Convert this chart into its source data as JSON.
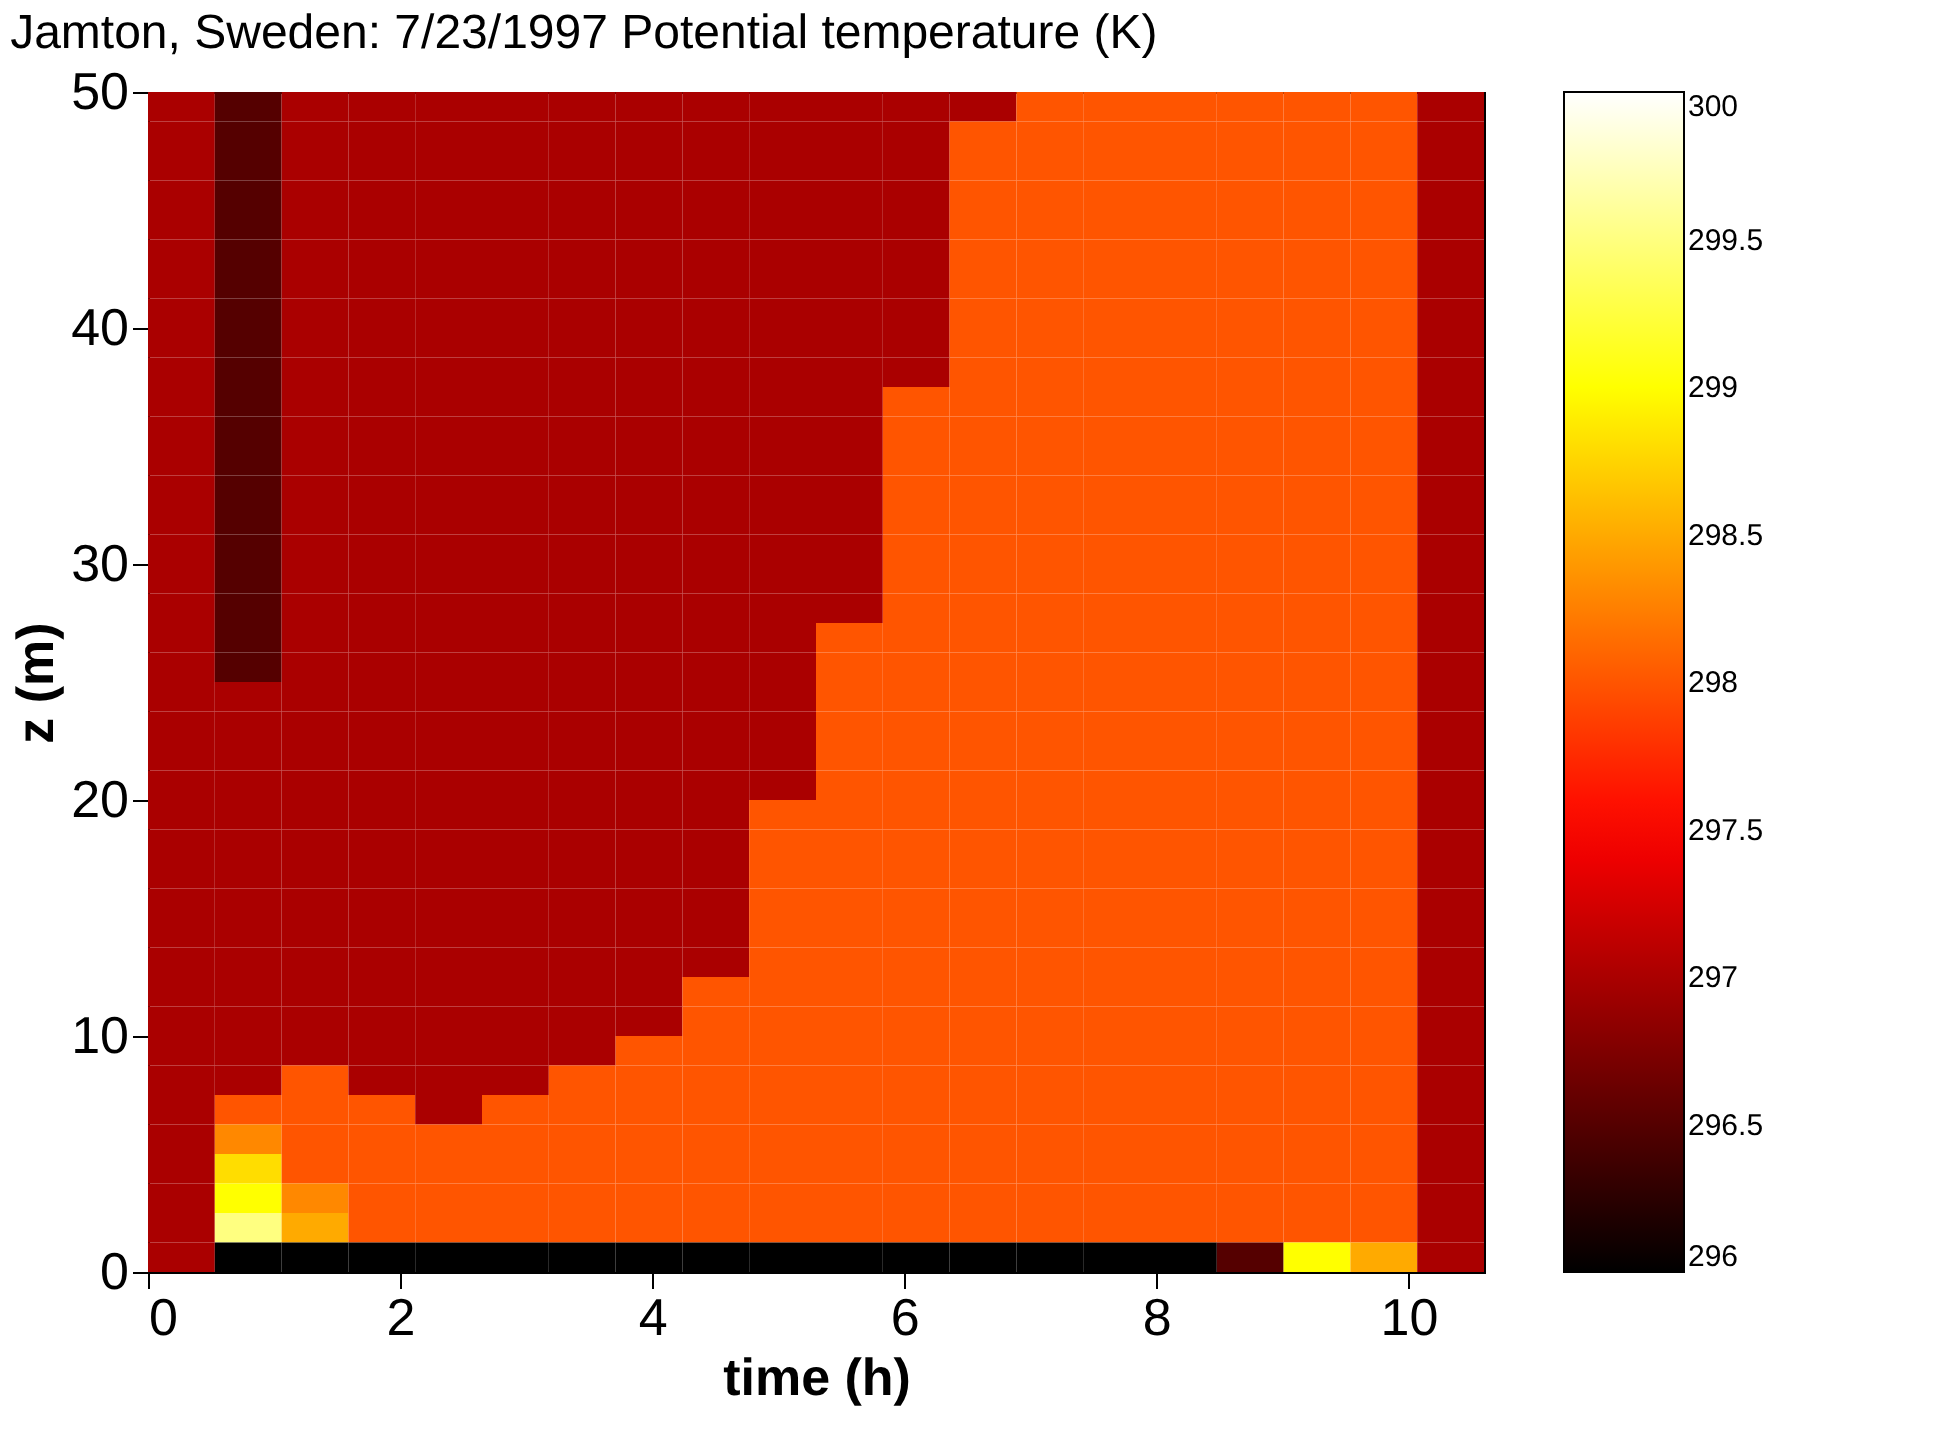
{
  "chart_data": {
    "type": "heatmap",
    "title": "Jamton, Sweden: 7/23/1997 Potential temperature (K)",
    "xlabel": "time (h)",
    "ylabel": "z (m)",
    "cells": [
      [
        297,
        296.5,
        297,
        297,
        297,
        297,
        297,
        297,
        297,
        297,
        297,
        297,
        297,
        298,
        298,
        298,
        298,
        298,
        298,
        297
      ],
      [
        297,
        296.5,
        297,
        297,
        297,
        297,
        297,
        297,
        297,
        297,
        297,
        297,
        298,
        298,
        298,
        298,
        298,
        298,
        298,
        297
      ],
      [
        297,
        296.5,
        297,
        297,
        297,
        297,
        297,
        297,
        297,
        297,
        297,
        297,
        298,
        298,
        298,
        298,
        298,
        298,
        298,
        297
      ],
      [
        297,
        296.5,
        297,
        297,
        297,
        297,
        297,
        297,
        297,
        297,
        297,
        297,
        298,
        298,
        298,
        298,
        298,
        298,
        298,
        297
      ],
      [
        297,
        296.5,
        297,
        297,
        297,
        297,
        297,
        297,
        297,
        297,
        297,
        297,
        298,
        298,
        298,
        298,
        298,
        298,
        298,
        297
      ],
      [
        297,
        296.5,
        297,
        297,
        297,
        297,
        297,
        297,
        297,
        297,
        297,
        297,
        298,
        298,
        298,
        298,
        298,
        298,
        298,
        297
      ],
      [
        297,
        296.5,
        297,
        297,
        297,
        297,
        297,
        297,
        297,
        297,
        297,
        297,
        298,
        298,
        298,
        298,
        298,
        298,
        298,
        297
      ],
      [
        297,
        296.5,
        297,
        297,
        297,
        297,
        297,
        297,
        297,
        297,
        297,
        297,
        298,
        298,
        298,
        298,
        298,
        298,
        298,
        297
      ],
      [
        297,
        296.5,
        297,
        297,
        297,
        297,
        297,
        297,
        297,
        297,
        297,
        297,
        298,
        298,
        298,
        298,
        298,
        298,
        298,
        297
      ],
      [
        297,
        296.5,
        297,
        297,
        297,
        297,
        297,
        297,
        297,
        297,
        297,
        297,
        298,
        298,
        298,
        298,
        298,
        298,
        298,
        297
      ],
      [
        297,
        296.5,
        297,
        297,
        297,
        297,
        297,
        297,
        297,
        297,
        297,
        298,
        298,
        298,
        298,
        298,
        298,
        298,
        298,
        297
      ],
      [
        297,
        296.5,
        297,
        297,
        297,
        297,
        297,
        297,
        297,
        297,
        297,
        298,
        298,
        298,
        298,
        298,
        298,
        298,
        298,
        297
      ],
      [
        297,
        296.5,
        297,
        297,
        297,
        297,
        297,
        297,
        297,
        297,
        297,
        298,
        298,
        298,
        298,
        298,
        298,
        298,
        298,
        297
      ],
      [
        297,
        296.5,
        297,
        297,
        297,
        297,
        297,
        297,
        297,
        297,
        297,
        298,
        298,
        298,
        298,
        298,
        298,
        298,
        298,
        297
      ],
      [
        297,
        296.5,
        297,
        297,
        297,
        297,
        297,
        297,
        297,
        297,
        297,
        298,
        298,
        298,
        298,
        298,
        298,
        298,
        298,
        297
      ],
      [
        297,
        296.5,
        297,
        297,
        297,
        297,
        297,
        297,
        297,
        297,
        297,
        298,
        298,
        298,
        298,
        298,
        298,
        298,
        298,
        297
      ],
      [
        297,
        296.5,
        297,
        297,
        297,
        297,
        297,
        297,
        297,
        297,
        297,
        298,
        298,
        298,
        298,
        298,
        298,
        298,
        298,
        297
      ],
      [
        297,
        296.5,
        297,
        297,
        297,
        297,
        297,
        297,
        297,
        297,
        297,
        298,
        298,
        298,
        298,
        298,
        298,
        298,
        298,
        297
      ],
      [
        297,
        296.5,
        297,
        297,
        297,
        297,
        297,
        297,
        297,
        297,
        298,
        298,
        298,
        298,
        298,
        298,
        298,
        298,
        298,
        297
      ],
      [
        297,
        296.5,
        297,
        297,
        297,
        297,
        297,
        297,
        297,
        297,
        298,
        298,
        298,
        298,
        298,
        298,
        298,
        298,
        298,
        297
      ],
      [
        297,
        297,
        297,
        297,
        297,
        297,
        297,
        297,
        297,
        297,
        298,
        298,
        298,
        298,
        298,
        298,
        298,
        298,
        298,
        297
      ],
      [
        297,
        297,
        297,
        297,
        297,
        297,
        297,
        297,
        297,
        297,
        298,
        298,
        298,
        298,
        298,
        298,
        298,
        298,
        298,
        297
      ],
      [
        297,
        297,
        297,
        297,
        297,
        297,
        297,
        297,
        297,
        297,
        298,
        298,
        298,
        298,
        298,
        298,
        298,
        298,
        298,
        297
      ],
      [
        297,
        297,
        297,
        297,
        297,
        297,
        297,
        297,
        297,
        297,
        298,
        298,
        298,
        298,
        298,
        298,
        298,
        298,
        298,
        297
      ],
      [
        297,
        297,
        297,
        297,
        297,
        297,
        297,
        297,
        297,
        298,
        298,
        298,
        298,
        298,
        298,
        298,
        298,
        298,
        298,
        297
      ],
      [
        297,
        297,
        297,
        297,
        297,
        297,
        297,
        297,
        297,
        298,
        298,
        298,
        298,
        298,
        298,
        298,
        298,
        298,
        298,
        297
      ],
      [
        297,
        297,
        297,
        297,
        297,
        297,
        297,
        297,
        297,
        298,
        298,
        298,
        298,
        298,
        298,
        298,
        298,
        298,
        298,
        297
      ],
      [
        297,
        297,
        297,
        297,
        297,
        297,
        297,
        297,
        297,
        298,
        298,
        298,
        298,
        298,
        298,
        298,
        298,
        298,
        298,
        297
      ],
      [
        297,
        297,
        297,
        297,
        297,
        297,
        297,
        297,
        297,
        298,
        298,
        298,
        298,
        298,
        298,
        298,
        298,
        298,
        298,
        297
      ],
      [
        297,
        297,
        297,
        297,
        297,
        297,
        297,
        297,
        297,
        298,
        298,
        298,
        298,
        298,
        298,
        298,
        298,
        298,
        298,
        297
      ],
      [
        297,
        297,
        297,
        297,
        297,
        297,
        297,
        297,
        298,
        298,
        298,
        298,
        298,
        298,
        298,
        298,
        298,
        298,
        298,
        297
      ],
      [
        297,
        297,
        297,
        297,
        297,
        297,
        297,
        297,
        298,
        298,
        298,
        298,
        298,
        298,
        298,
        298,
        298,
        298,
        298,
        297
      ],
      [
        297,
        297,
        297,
        297,
        297,
        297,
        297,
        298,
        298,
        298,
        298,
        298,
        298,
        298,
        298,
        298,
        298,
        298,
        298,
        297
      ],
      [
        297,
        297,
        298,
        297,
        297,
        297,
        298,
        298,
        298,
        298,
        298,
        298,
        298,
        298,
        298,
        298,
        298,
        298,
        298,
        297
      ],
      [
        297,
        298,
        298,
        298,
        297,
        298,
        298,
        298,
        298,
        298,
        298,
        298,
        298,
        298,
        298,
        298,
        298,
        298,
        298,
        297
      ],
      [
        297,
        298.3,
        298,
        298,
        298,
        298,
        298,
        298,
        298,
        298,
        298,
        298,
        298,
        298,
        298,
        298,
        298,
        298,
        298,
        297
      ],
      [
        297,
        298.8,
        298,
        298,
        298,
        298,
        298,
        298,
        298,
        298,
        298,
        298,
        298,
        298,
        298,
        298,
        298,
        298,
        298,
        297
      ],
      [
        297,
        299,
        298.3,
        298,
        298,
        298,
        298,
        298,
        298,
        298,
        298,
        298,
        298,
        298,
        298,
        298,
        298,
        298,
        298,
        297
      ],
      [
        297,
        299.5,
        298.5,
        298,
        298,
        298,
        298,
        298,
        298,
        298,
        298,
        298,
        298,
        298,
        298,
        298,
        298,
        298,
        298,
        297
      ],
      [
        297,
        296,
        296,
        296,
        296,
        296,
        296,
        296,
        296,
        296,
        296,
        296,
        296,
        296,
        296,
        296,
        296.5,
        299,
        298.5,
        297
      ]
    ],
    "xlim": [
      0,
      10.6
    ],
    "ylim": [
      0,
      50
    ],
    "xticks": [
      0,
      2,
      4,
      6,
      8,
      10
    ],
    "yticks": [
      0,
      10,
      20,
      30,
      40,
      50
    ],
    "clim": [
      296,
      300
    ],
    "cticks": [
      296,
      296.5,
      297,
      297.5,
      298,
      298.5,
      299,
      299.5,
      300
    ],
    "grid": false
  }
}
